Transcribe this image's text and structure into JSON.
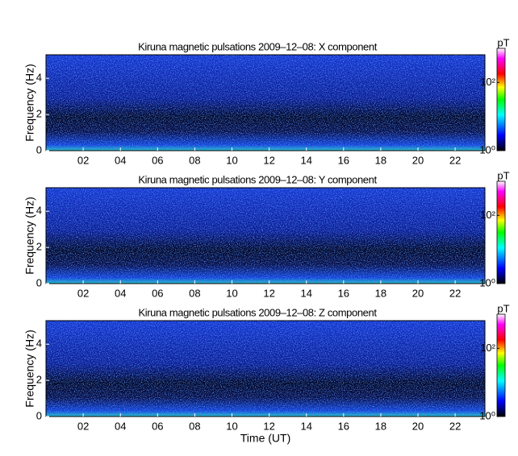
{
  "chart_data": [
    {
      "type": "heatmap",
      "title": "Kiruna magnetic pulsations 2009–12–08: X component",
      "ylabel": "Frequency (Hz)",
      "xlim": [
        0,
        23.6
      ],
      "xticks": [
        {
          "value": 2,
          "label": "02"
        },
        {
          "value": 4,
          "label": "04"
        },
        {
          "value": 6,
          "label": "06"
        },
        {
          "value": 8,
          "label": "08"
        },
        10,
        12,
        14,
        16,
        18,
        20,
        22
      ],
      "ylim": [
        0,
        5.3
      ],
      "yticks": [
        0,
        2,
        4
      ],
      "colorbar": {
        "label": "pT",
        "log": true,
        "lim": [
          1,
          1000
        ],
        "ticks": [
          {
            "value": 1,
            "label": "10⁰"
          },
          {
            "value": 100,
            "label": "10²"
          }
        ]
      }
    },
    {
      "type": "heatmap",
      "title": "Kiruna magnetic pulsations 2009–12–08: Y component",
      "ylabel": "Frequency (Hz)",
      "xlim": [
        0,
        23.6
      ],
      "xticks": [
        {
          "value": 2,
          "label": "02"
        },
        {
          "value": 4,
          "label": "04"
        },
        {
          "value": 6,
          "label": "06"
        },
        {
          "value": 8,
          "label": "08"
        },
        10,
        12,
        14,
        16,
        18,
        20,
        22
      ],
      "ylim": [
        0,
        5.3
      ],
      "yticks": [
        0,
        2,
        4
      ],
      "colorbar": {
        "label": "pT",
        "log": true,
        "lim": [
          1,
          1000
        ],
        "ticks": [
          {
            "value": 1,
            "label": "10⁰"
          },
          {
            "value": 100,
            "label": "10²"
          }
        ]
      }
    },
    {
      "type": "heatmap",
      "title": "Kiruna magnetic pulsations 2009–12–08: Z component",
      "ylabel": "Frequency (Hz)",
      "xlabel": "Time (UT)",
      "xlim": [
        0,
        23.6
      ],
      "xticks": [
        {
          "value": 2,
          "label": "02"
        },
        {
          "value": 4,
          "label": "04"
        },
        {
          "value": 6,
          "label": "06"
        },
        {
          "value": 8,
          "label": "08"
        },
        10,
        12,
        14,
        16,
        18,
        20,
        22
      ],
      "ylim": [
        0,
        5.3
      ],
      "yticks": [
        0,
        2,
        4
      ],
      "colorbar": {
        "label": "pT",
        "log": true,
        "lim": [
          1,
          1000
        ],
        "ticks": [
          {
            "value": 1,
            "label": "10⁰"
          },
          {
            "value": 100,
            "label": "10²"
          }
        ]
      }
    }
  ]
}
